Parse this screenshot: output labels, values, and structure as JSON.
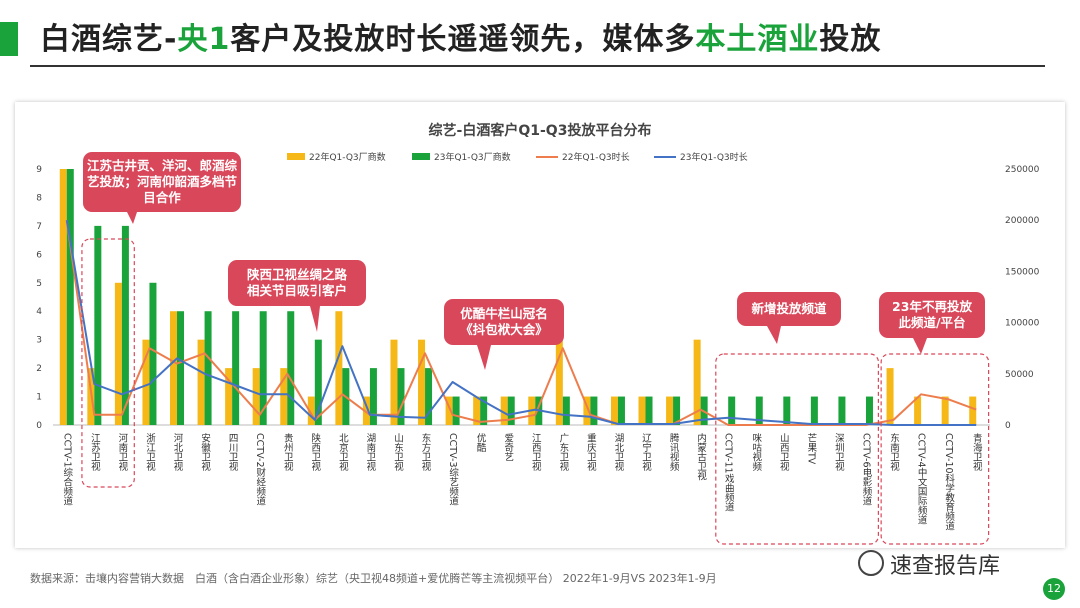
{
  "page": {
    "title_parts": [
      {
        "text": "白酒综艺-",
        "hl": false
      },
      {
        "text": "央1",
        "hl": true
      },
      {
        "text": "客户及投放时长遥遥领先，媒体多",
        "hl": false
      },
      {
        "text": "本土酒业",
        "hl": true
      },
      {
        "text": "投放",
        "hl": false
      }
    ],
    "source": "数据来源：击壤内容营销大数据　白酒（含白酒企业形象）综艺（央卫视48频道+爱优腾芒等主流视频平台） 2022年1-9月VS 2023年1-9月",
    "watermark": "速查报告库",
    "page_number": "12"
  },
  "colors": {
    "bar22": "#f5b817",
    "bar23": "#1aa33a",
    "line22": "#ed7d4d",
    "line23": "#4472c4",
    "callout": "#d9475a",
    "accent": "#1aa33a"
  },
  "chart_data": {
    "type": "bar",
    "title": "综艺-白酒客户Q1-Q3投放平台分布",
    "categories": [
      "CCTV-1综合频道",
      "江苏卫视",
      "河南卫视",
      "浙江卫视",
      "河北卫视",
      "安徽卫视",
      "四川卫视",
      "CCTV-2财经频道",
      "贵州卫视",
      "陕西卫视",
      "北京卫视",
      "湖南卫视",
      "山东卫视",
      "东方卫视",
      "CCTV-3综艺频道",
      "优酷",
      "爱奇艺",
      "江西卫视",
      "广东卫视",
      "重庆卫视",
      "湖北卫视",
      "辽宁卫视",
      "腾讯视频",
      "内蒙古卫视",
      "CCTV-11戏曲频道",
      "咪咕视频",
      "山西卫视",
      "芒果TV",
      "深圳卫视",
      "CCTV-6电影频道",
      "东南卫视",
      "CCTV-4中文国际频道",
      "CCTV-10科学教育频道",
      "青海卫视"
    ],
    "series": [
      {
        "name": "22年Q1-Q3厂商数",
        "type": "bar",
        "axis": "left",
        "values": [
          9,
          2,
          5,
          3,
          4,
          3,
          2,
          2,
          2,
          1,
          4,
          1,
          3,
          3,
          1,
          1,
          1,
          1,
          3,
          1,
          1,
          1,
          1,
          3,
          0,
          0,
          0,
          0,
          0,
          0,
          2,
          1,
          1,
          1
        ]
      },
      {
        "name": "23年Q1-Q3厂商数",
        "type": "bar",
        "axis": "left",
        "values": [
          9,
          7,
          7,
          5,
          4,
          4,
          4,
          4,
          4,
          3,
          2,
          2,
          2,
          2,
          1,
          1,
          1,
          1,
          1,
          1,
          1,
          1,
          1,
          1,
          1,
          1,
          1,
          1,
          1,
          1,
          0,
          0,
          0,
          0
        ]
      },
      {
        "name": "22年Q1-Q3时长",
        "type": "line",
        "axis": "right",
        "values": [
          200000,
          10000,
          10000,
          75000,
          60000,
          70000,
          40000,
          10000,
          50000,
          5000,
          30000,
          10000,
          10000,
          70000,
          10000,
          3000,
          5000,
          10000,
          75000,
          10000,
          1000,
          1000,
          1000,
          15000,
          0,
          0,
          0,
          0,
          0,
          0,
          5000,
          30000,
          25000,
          15000
        ]
      },
      {
        "name": "23年Q1-Q3时长",
        "type": "line",
        "axis": "right",
        "values": [
          200000,
          40000,
          30000,
          40000,
          65000,
          50000,
          40000,
          30000,
          30000,
          5000,
          77000,
          10000,
          8000,
          7000,
          42000,
          25000,
          10000,
          15000,
          10000,
          8000,
          1000,
          1000,
          1000,
          5000,
          7000,
          5000,
          3000,
          1000,
          1000,
          1000,
          0,
          0,
          0,
          0
        ]
      }
    ],
    "ylim_left": [
      0,
      9
    ],
    "yticks_left": [
      "0",
      "1",
      "2",
      "3",
      "4",
      "5",
      "6",
      "7",
      "8",
      "9"
    ],
    "ylim_right": [
      0,
      250000
    ],
    "yticks_right": [
      "0",
      "50000",
      "100000",
      "150000",
      "200000",
      "250000"
    ],
    "legend_position": "top",
    "grid": false,
    "annotations": [
      {
        "text": [
          "江苏古井贡、洋河、郎酒综",
          "艺投放；河南仰韶酒多档节",
          "目合作"
        ]
      },
      {
        "text": [
          "陕西卫视丝绸之路",
          "相关节目吸引客户"
        ]
      },
      {
        "text": [
          "优酷牛栏山冠名",
          "《抖包袱大会》"
        ]
      },
      {
        "text": [
          "新增投放频道"
        ]
      },
      {
        "text": [
          "23年不再投放",
          "此频道/平台"
        ]
      }
    ]
  }
}
